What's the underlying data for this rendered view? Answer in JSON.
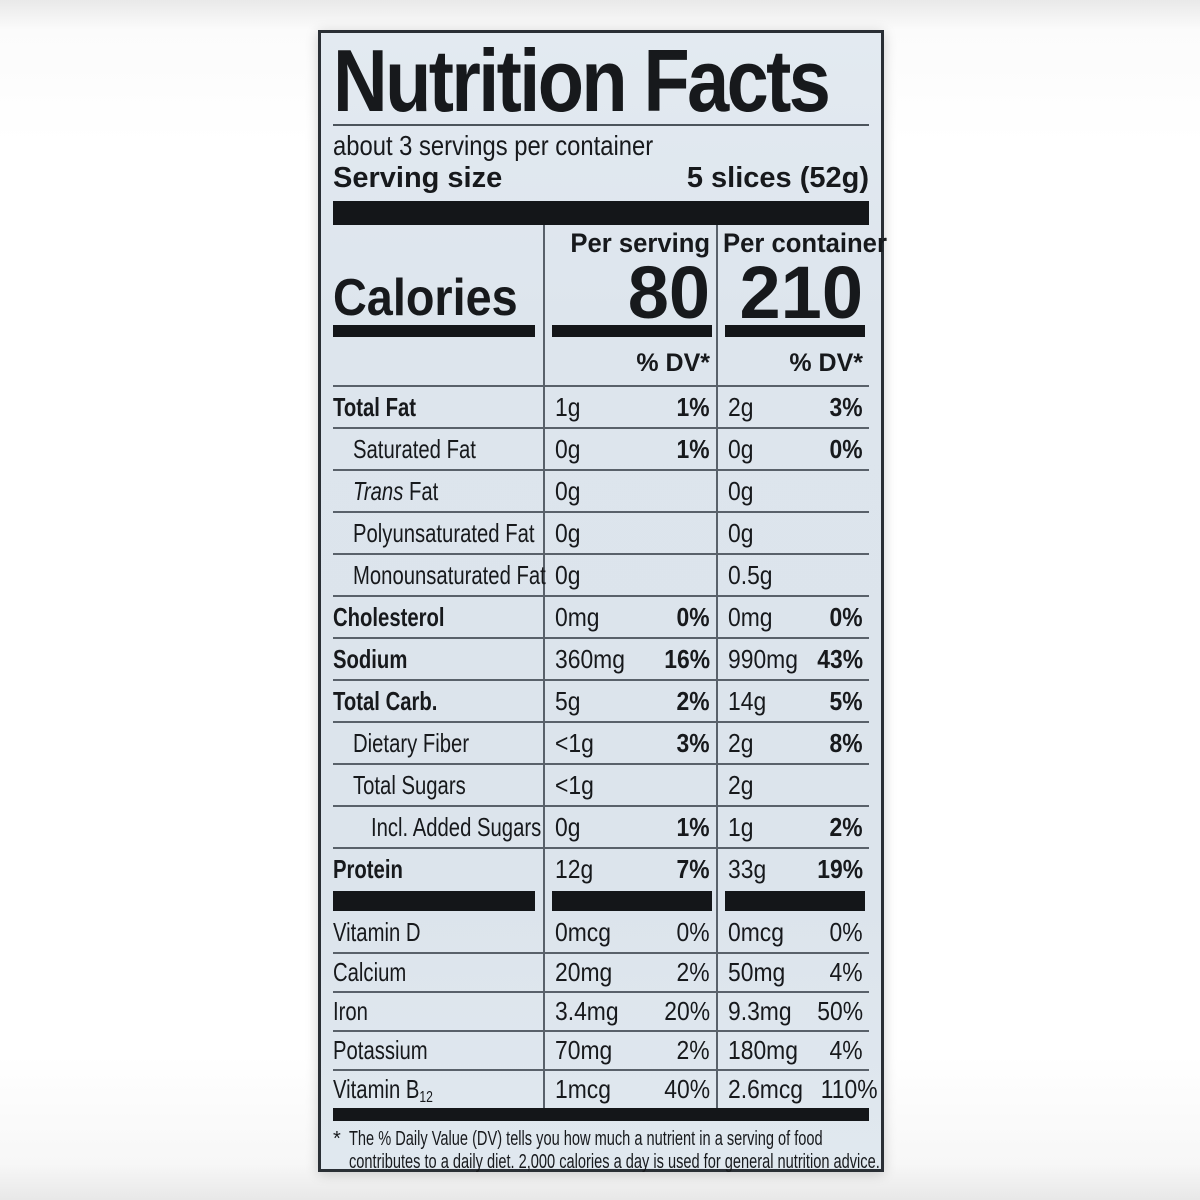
{
  "label": {
    "title": "Nutrition Facts",
    "servings_line": "about 3 servings per container",
    "serving_size": {
      "label": "Serving size",
      "value": "5 slices (52g)"
    },
    "calories": {
      "label": "Calories",
      "per_serving_header": "Per serving",
      "per_container_header": "Per container",
      "per_serving_value": "80",
      "per_container_value": "210",
      "dv_header": "% DV*"
    },
    "rows": [
      {
        "type": "main",
        "name": "Total Fat",
        "per_serving": {
          "amount": "1g",
          "dv": "1%"
        },
        "per_container": {
          "amount": "2g",
          "dv": "3%"
        }
      },
      {
        "type": "sub",
        "name": "Saturated Fat",
        "per_serving": {
          "amount": "0g",
          "dv": "1%"
        },
        "per_container": {
          "amount": "0g",
          "dv": "0%"
        }
      },
      {
        "type": "sub",
        "name_italic": "Trans",
        "name": " Fat",
        "per_serving": {
          "amount": "0g"
        },
        "per_container": {
          "amount": "0g"
        }
      },
      {
        "type": "sub",
        "name": "Polyunsaturated Fat",
        "per_serving": {
          "amount": "0g"
        },
        "per_container": {
          "amount": "0g"
        }
      },
      {
        "type": "sub",
        "name": "Monounsaturated Fat",
        "per_serving": {
          "amount": "0g"
        },
        "per_container": {
          "amount": "0.5g"
        }
      },
      {
        "type": "main",
        "name": "Cholesterol",
        "per_serving": {
          "amount": "0mg",
          "dv": "0%"
        },
        "per_container": {
          "amount": "0mg",
          "dv": "0%"
        }
      },
      {
        "type": "main",
        "name": "Sodium",
        "per_serving": {
          "amount": "360mg",
          "dv": "16%"
        },
        "per_container": {
          "amount": "990mg",
          "dv": "43%"
        }
      },
      {
        "type": "main",
        "name": "Total Carb.",
        "per_serving": {
          "amount": "5g",
          "dv": "2%"
        },
        "per_container": {
          "amount": "14g",
          "dv": "5%"
        }
      },
      {
        "type": "sub",
        "name": "Dietary Fiber",
        "per_serving": {
          "amount": "<1g",
          "dv": "3%"
        },
        "per_container": {
          "amount": "2g",
          "dv": "8%"
        }
      },
      {
        "type": "sub",
        "name": "Total Sugars",
        "per_serving": {
          "amount": "<1g"
        },
        "per_container": {
          "amount": "2g"
        }
      },
      {
        "type": "sub2",
        "name": "Incl. Added Sugars",
        "per_serving": {
          "amount": "0g",
          "dv": "1%"
        },
        "per_container": {
          "amount": "1g",
          "dv": "2%"
        }
      },
      {
        "type": "main",
        "name": "Protein",
        "thick_rule_below": true,
        "per_serving": {
          "amount": "12g",
          "dv": "7%"
        },
        "per_container": {
          "amount": "33g",
          "dv": "19%"
        }
      },
      {
        "type": "vitamin",
        "name": "Vitamin D",
        "no_rule_above": true,
        "per_serving": {
          "amount": "0mcg",
          "dv": "0%"
        },
        "per_container": {
          "amount": "0mcg",
          "dv": "0%"
        }
      },
      {
        "type": "vitamin",
        "name": "Calcium",
        "per_serving": {
          "amount": "20mg",
          "dv": "2%"
        },
        "per_container": {
          "amount": "50mg",
          "dv": "4%"
        }
      },
      {
        "type": "vitamin",
        "name": "Iron",
        "per_serving": {
          "amount": "3.4mg",
          "dv": "20%"
        },
        "per_container": {
          "amount": "9.3mg",
          "dv": "50%"
        }
      },
      {
        "type": "vitamin",
        "name": "Potassium",
        "per_serving": {
          "amount": "70mg",
          "dv": "2%"
        },
        "per_container": {
          "amount": "180mg",
          "dv": "4%"
        }
      },
      {
        "type": "vitamin",
        "name": "Vitamin B",
        "name_sub": "12",
        "per_serving": {
          "amount": "1mcg",
          "dv": "40%"
        },
        "per_container": {
          "amount": "2.6mcg",
          "dv": "110%"
        }
      }
    ],
    "footnote": {
      "marker": "*",
      "line1": "The % Daily Value (DV) tells you how much a nutrient in a serving of food",
      "line2": "contributes to a daily diet. 2,000 calories a day is used for general nutrition advice."
    },
    "colors": {
      "background": "#dde5ec",
      "ink": "#141619",
      "rule": "#59616a",
      "border": "#2a2f35"
    }
  }
}
